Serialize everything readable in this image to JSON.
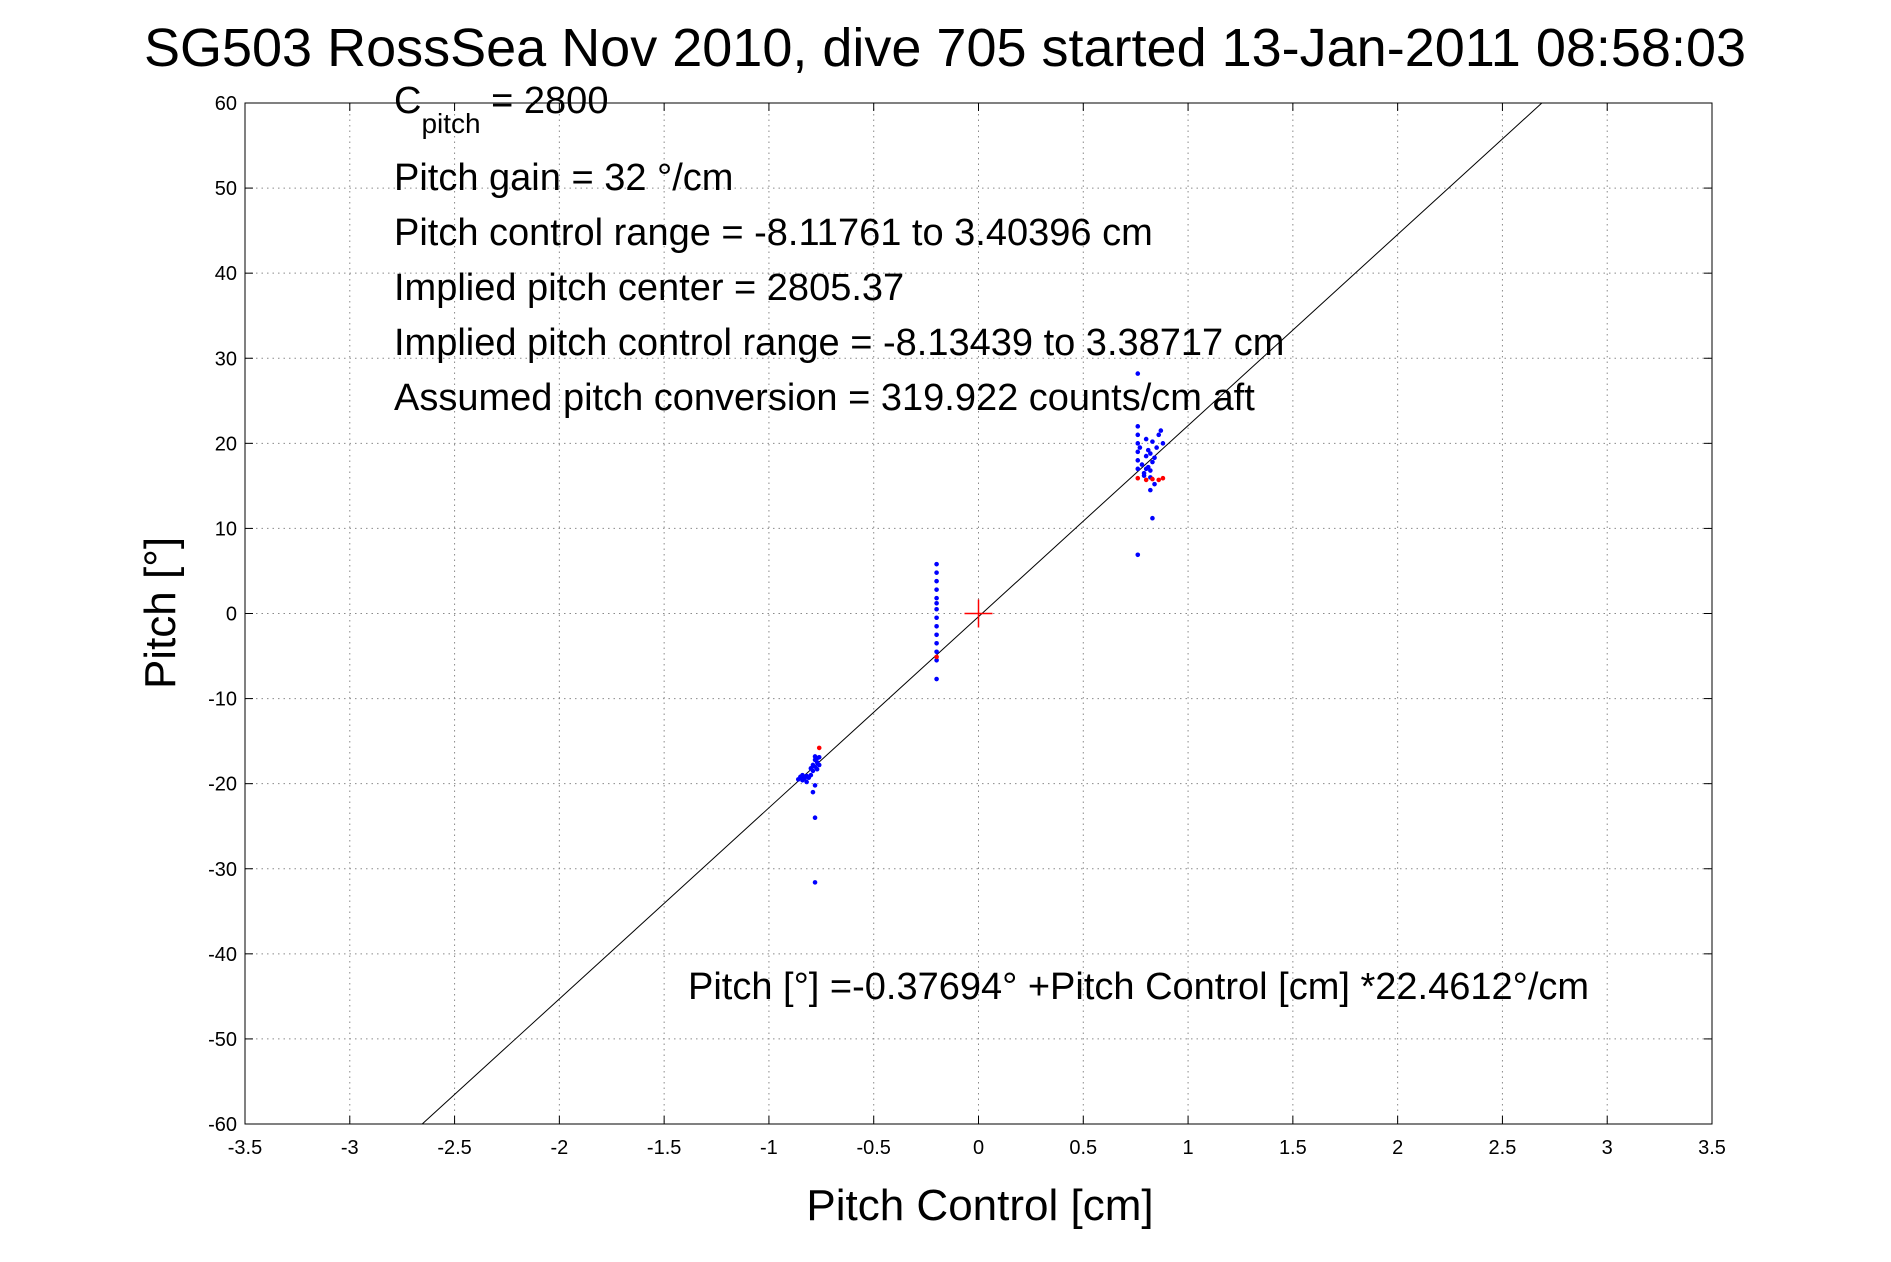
{
  "chart_data": {
    "type": "scatter",
    "title": "SG503 RossSea Nov 2010, dive 705 started 13-Jan-2011 08:58:03",
    "xlabel": "Pitch Control [cm]",
    "ylabel": "Pitch [°]",
    "xlim": [
      -3.5,
      3.5
    ],
    "ylim": [
      -60,
      60
    ],
    "xticks": [
      -3.5,
      -3,
      -2.5,
      -2,
      -1.5,
      -1,
      -0.5,
      0,
      0.5,
      1,
      1.5,
      2,
      2.5,
      3,
      3.5
    ],
    "xtick_labels": [
      "-3.5",
      "-3",
      "-2.5",
      "-2",
      "-1.5",
      "-1",
      "-0.5",
      "0",
      "0.5",
      "1",
      "1.5",
      "2",
      "2.5",
      "3",
      "3.5"
    ],
    "yticks": [
      -60,
      -50,
      -40,
      -30,
      -20,
      -10,
      0,
      10,
      20,
      30,
      40,
      50,
      60
    ],
    "ytick_labels": [
      "-60",
      "-50",
      "-40",
      "-30",
      "-20",
      "-10",
      "0",
      "10",
      "20",
      "30",
      "40",
      "50",
      "60"
    ],
    "grid": true,
    "annotations": {
      "cpitch": {
        "main": "C",
        "sub": "pitch",
        "rest": " = 2800"
      },
      "lines": [
        "Pitch gain = 32 °/cm",
        "Pitch control range = -8.11761 to 3.40396 cm",
        "Implied pitch center = 2805.37",
        "Implied pitch control range = -8.13439 to 3.38717 cm",
        "Assumed pitch conversion = 319.922 counts/cm aft"
      ],
      "fit_equation": "Pitch [°] =-0.37694° +Pitch Control [cm] *22.4612°/cm"
    },
    "fit_line": {
      "intercept": -0.37694,
      "slope": 22.4612
    },
    "center_marker": {
      "x": 0,
      "y": 0,
      "color": "#ff0000"
    },
    "series": [
      {
        "color": "#0000ff",
        "marker": "dot",
        "x": [
          -0.86,
          -0.85,
          -0.84,
          -0.84,
          -0.83,
          -0.82,
          -0.82,
          -0.81,
          -0.8,
          -0.8,
          -0.79,
          -0.79,
          -0.78,
          -0.78,
          -0.78,
          -0.77,
          -0.77,
          -0.77,
          -0.76,
          -0.76,
          -0.78,
          -0.79,
          -0.78,
          -0.78,
          -0.2,
          -0.2,
          -0.2,
          -0.2,
          -0.2,
          -0.2,
          -0.2,
          -0.2,
          -0.2,
          -0.2,
          -0.2,
          -0.2,
          -0.2,
          -0.2,
          0.76,
          0.76,
          0.76,
          0.76,
          0.76,
          0.76,
          0.76,
          0.77,
          0.78,
          0.79,
          0.8,
          0.8,
          0.81,
          0.81,
          0.82,
          0.82,
          0.83,
          0.83,
          0.84,
          0.85,
          0.86,
          0.87,
          0.88,
          0.84,
          0.82,
          0.83,
          0.76,
          0.79,
          0.8,
          0.82
        ],
        "y": [
          -19.5,
          -19.2,
          -19.6,
          -19.0,
          -19.4,
          -19.8,
          -19.1,
          -19.3,
          -19.0,
          -18.2,
          -17.8,
          -18.5,
          -17.2,
          -18.0,
          -16.8,
          -17.5,
          -18.3,
          -17.0,
          -17.8,
          -16.9,
          -20.2,
          -21.0,
          -24.0,
          -31.6,
          5.8,
          4.8,
          3.8,
          2.8,
          1.8,
          1.2,
          0.5,
          -0.5,
          -1.5,
          -2.5,
          -3.5,
          -4.5,
          -5.5,
          -7.7,
          28.2,
          22.0,
          21.0,
          20.0,
          19.0,
          18.0,
          17.0,
          19.5,
          17.5,
          16.5,
          18.5,
          20.5,
          17.2,
          19.2,
          16.8,
          18.8,
          17.8,
          20.2,
          18.3,
          19.5,
          21.0,
          21.5,
          20.0,
          15.2,
          14.5,
          11.2,
          6.9,
          16.2,
          17.0,
          16.0
        ]
      },
      {
        "color": "#ff0000",
        "marker": "dot",
        "x": [
          -0.76,
          -0.2,
          0.76,
          0.8,
          0.83,
          0.86,
          0.88
        ],
        "y": [
          -15.8,
          -5.1,
          15.9,
          15.7,
          15.8,
          15.7,
          15.9
        ]
      }
    ]
  }
}
